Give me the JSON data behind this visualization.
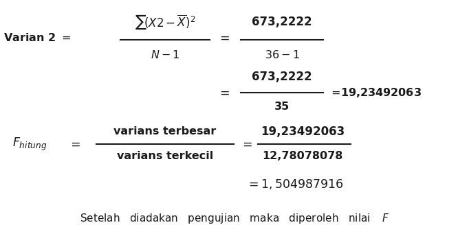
{
  "bg_color": "#ffffff",
  "text_color": "#1a1a1a",
  "figsize": [
    6.82,
    3.44
  ],
  "dpi": 100,
  "fs": 11.5
}
